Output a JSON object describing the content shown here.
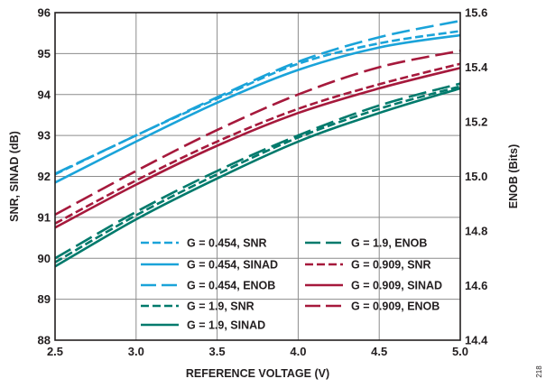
{
  "figure_id": "218",
  "chart_data": {
    "type": "line",
    "xlabel": "REFERENCE VOLTAGE (V)",
    "ylabel": "SNR, SINAD (dB)",
    "y2label": "ENOB (Bits)",
    "xlim": [
      2.5,
      5.0
    ],
    "ylim": [
      88,
      96
    ],
    "y2lim": [
      14.4,
      15.6
    ],
    "xticks": [
      "2.5",
      "3.0",
      "3.5",
      "4.0",
      "4.5",
      "5.0"
    ],
    "yticks": [
      "88",
      "89",
      "90",
      "91",
      "92",
      "93",
      "94",
      "95",
      "96"
    ],
    "y2ticks": [
      "14.4",
      "14.6",
      "14.8",
      "15.0",
      "15.2",
      "15.4",
      "15.6"
    ],
    "grid": true,
    "legend_position": "bottom-right",
    "colors": {
      "cyan": "#1aa3d9",
      "green": "#007a6c",
      "maroon": "#a6193c"
    },
    "series": [
      {
        "name": "G = 0.454, SNR",
        "axis": "left",
        "style": "dashed",
        "color": "#1aa3d9",
        "x": [
          2.5,
          3.0,
          3.5,
          4.0,
          4.5,
          5.0
        ],
        "values": [
          92.05,
          93.0,
          93.9,
          94.75,
          95.25,
          95.55
        ]
      },
      {
        "name": "G = 0.454, SINAD",
        "axis": "left",
        "style": "solid",
        "color": "#1aa3d9",
        "x": [
          2.5,
          3.0,
          3.5,
          4.0,
          4.5,
          5.0
        ],
        "values": [
          91.85,
          92.85,
          93.8,
          94.6,
          95.15,
          95.45
        ]
      },
      {
        "name": "G = 0.454, ENOB",
        "axis": "right",
        "style": "longdash",
        "color": "#1aa3d9",
        "x": [
          2.5,
          3.0,
          3.5,
          4.0,
          4.5,
          5.0
        ],
        "values": [
          15.01,
          15.15,
          15.29,
          15.42,
          15.51,
          15.57
        ]
      },
      {
        "name": "G = 1.9, SNR",
        "axis": "left",
        "style": "dashed",
        "color": "#007a6c",
        "x": [
          2.5,
          3.0,
          3.5,
          4.0,
          4.5,
          5.0
        ],
        "values": [
          89.9,
          91.05,
          92.05,
          92.95,
          93.65,
          94.2
        ]
      },
      {
        "name": "G = 1.9, SINAD",
        "axis": "left",
        "style": "solid",
        "color": "#007a6c",
        "x": [
          2.5,
          3.0,
          3.5,
          4.0,
          4.5,
          5.0
        ],
        "values": [
          89.8,
          90.95,
          91.95,
          92.85,
          93.55,
          94.15
        ]
      },
      {
        "name": "G = 1.9, ENOB",
        "axis": "right",
        "style": "longdash",
        "color": "#007a6c",
        "x": [
          2.5,
          3.0,
          3.5,
          4.0,
          4.5,
          5.0
        ],
        "values": [
          14.7,
          14.87,
          15.02,
          15.15,
          15.26,
          15.34
        ]
      },
      {
        "name": "G = 0.909, SNR",
        "axis": "left",
        "style": "dashed",
        "color": "#a6193c",
        "x": [
          2.5,
          3.0,
          3.5,
          4.0,
          4.5,
          5.0
        ],
        "values": [
          90.85,
          91.9,
          92.85,
          93.65,
          94.25,
          94.75
        ]
      },
      {
        "name": "G = 0.909, SINAD",
        "axis": "left",
        "style": "solid",
        "color": "#a6193c",
        "x": [
          2.5,
          3.0,
          3.5,
          4.0,
          4.5,
          5.0
        ],
        "values": [
          90.75,
          91.8,
          92.75,
          93.55,
          94.15,
          94.65
        ]
      },
      {
        "name": "G = 0.909, ENOB",
        "axis": "right",
        "style": "longdash",
        "color": "#a6193c",
        "x": [
          2.5,
          3.0,
          3.5,
          4.0,
          4.5,
          5.0
        ],
        "values": [
          14.86,
          15.02,
          15.17,
          15.3,
          15.4,
          15.46
        ]
      }
    ],
    "legend_columns": [
      [
        "G = 0.454, SNR",
        "G = 0.454, SINAD",
        "G = 0.454, ENOB",
        "G = 1.9, SNR",
        "G = 1.9, SINAD"
      ],
      [
        "G = 1.9, ENOB",
        "G = 0.909, SNR",
        "G = 0.909, SINAD",
        "G = 0.909, ENOB"
      ]
    ]
  }
}
